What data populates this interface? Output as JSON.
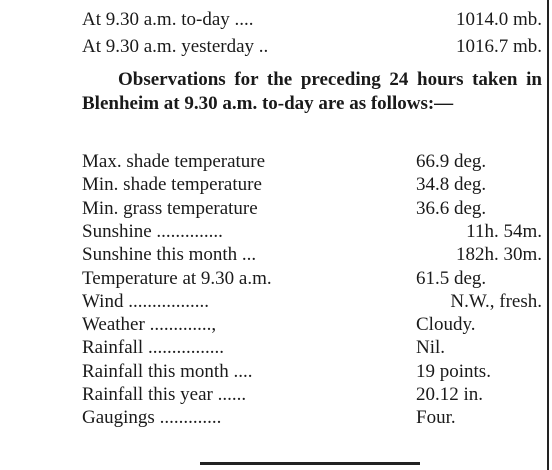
{
  "pressure": [
    {
      "label": "At 9.30 a.m. to-day ....",
      "value": "1014.0 mb."
    },
    {
      "label": "At 9.30 a.m. yesterday ..",
      "value": "1016.7 mb."
    }
  ],
  "intro": "Observations for the preceding 24 hours taken in Blenheim at 9.30 a.m. to-day are as follows:—",
  "observations": [
    {
      "label": "Max. shade temperature",
      "value": "66.9 deg."
    },
    {
      "label": "Min. shade temperature",
      "value": "34.8 deg."
    },
    {
      "label": "Min. grass temperature",
      "value": "36.6 deg."
    },
    {
      "label": "Sunshine ..............",
      "value": "11h. 54m."
    },
    {
      "label": "Sunshine this month ...",
      "value": "182h. 30m."
    },
    {
      "label": "Temperature at 9.30 a.m.",
      "value": "61.5 deg."
    },
    {
      "label": "Wind .................",
      "value": "N.W., fresh."
    },
    {
      "label": "Weather .............,",
      "value": "Cloudy."
    },
    {
      "label": "Rainfall ................",
      "value": "Nil."
    },
    {
      "label": "Rainfall this month ....",
      "value": "19 points."
    },
    {
      "label": "Rainfall this year ......",
      "value": "20.12 in."
    },
    {
      "label": "Gaugings .............",
      "value": "Four."
    }
  ]
}
